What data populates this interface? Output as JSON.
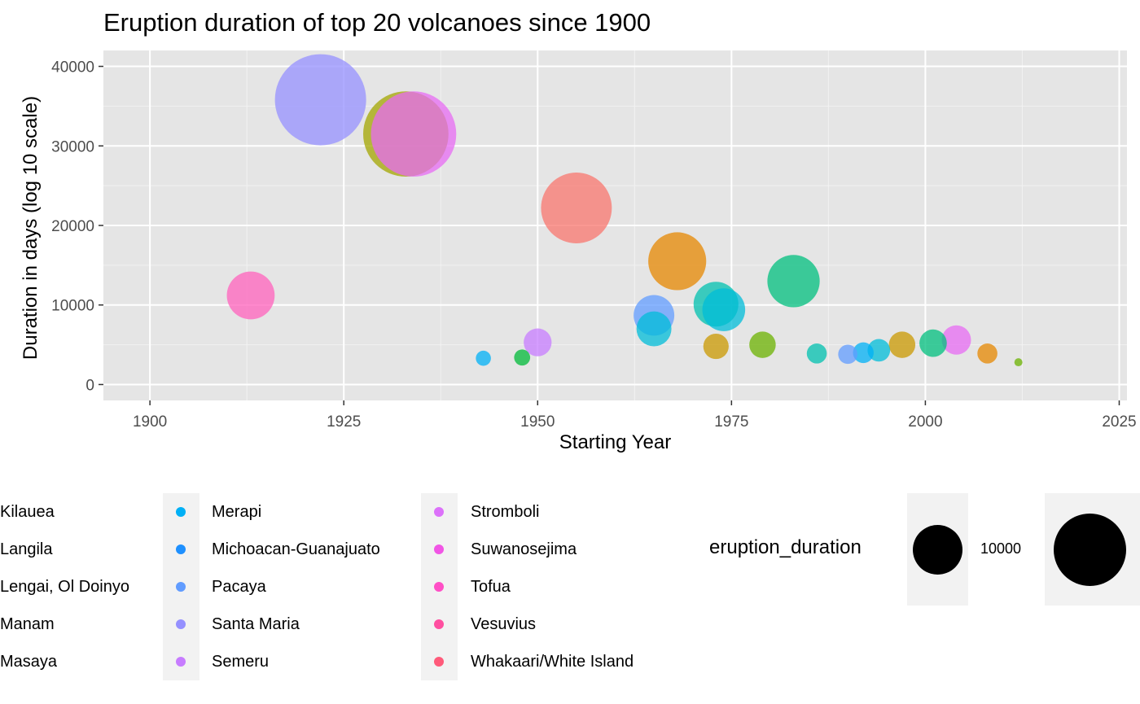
{
  "chart_data": {
    "type": "scatter",
    "title": "Eruption duration of top 20 volcanoes since 1900",
    "xlabel": "Starting Year",
    "ylabel": "Duration in days (log 10 scale)",
    "xlim": [
      1894,
      2026
    ],
    "ylim": [
      -2000,
      42000
    ],
    "x_ticks": [
      1900,
      1925,
      1950,
      1975,
      2000,
      2025
    ],
    "y_ticks": [
      0,
      10000,
      20000,
      30000,
      40000
    ],
    "grid": true,
    "legend_position": "bottom",
    "size_legend": {
      "title": "eruption_duration",
      "labels": [
        "10000"
      ]
    },
    "series": [
      {
        "name": "Kilauea",
        "color": "#F8766D",
        "points": [
          {
            "x": 1955,
            "y": 22200
          }
        ]
      },
      {
        "name": "Langila",
        "color": "#E58700",
        "points": [
          {
            "x": 1968,
            "y": 15500
          },
          {
            "x": 2008,
            "y": 3900
          }
        ]
      },
      {
        "name": "Lengai, Ol Doinyo",
        "color": "#C99800",
        "points": [
          {
            "x": 1973,
            "y": 4800
          },
          {
            "x": 1997,
            "y": 5000
          }
        ]
      },
      {
        "name": "Manam",
        "color": "#A3A500",
        "points": [
          {
            "x": 1933,
            "y": 31500
          }
        ]
      },
      {
        "name": "Masaya",
        "color": "#6BB100",
        "points": [
          {
            "x": 1979,
            "y": 5000
          },
          {
            "x": 2012,
            "y": 2800
          }
        ]
      },
      {
        "name": "Merapi",
        "color": "#00BA38",
        "points": [
          {
            "x": 1948,
            "y": 3400
          }
        ]
      },
      {
        "name": "Michoacan-Guanajuato",
        "color": "#00BF7D",
        "points": [
          {
            "x": 1983,
            "y": 13000
          },
          {
            "x": 2001,
            "y": 5200
          }
        ]
      },
      {
        "name": "Pacaya",
        "color": "#00C0AF",
        "points": [
          {
            "x": 1973,
            "y": 10100
          },
          {
            "x": 1986,
            "y": 3900
          }
        ]
      },
      {
        "name": "Santa Maria",
        "color": "#00BCD8",
        "points": [
          {
            "x": 1974,
            "y": 9400
          },
          {
            "x": 1965,
            "y": 7000
          },
          {
            "x": 1994,
            "y": 4300
          }
        ]
      },
      {
        "name": "Semeru",
        "color": "#00B0F6",
        "points": [
          {
            "x": 1943,
            "y": 3300
          },
          {
            "x": 1992,
            "y": 4000
          }
        ]
      },
      {
        "name": "Stromboli",
        "color": "#619CFF",
        "points": [
          {
            "x": 1965,
            "y": 8700
          },
          {
            "x": 1990,
            "y": 3800
          }
        ]
      },
      {
        "name": "Suwanosejima",
        "color": "#9590FF",
        "points": [
          {
            "x": 1922,
            "y": 35800
          }
        ]
      },
      {
        "name": "Tofua",
        "color": "#C77CFF",
        "points": [
          {
            "x": 1950,
            "y": 5300
          }
        ]
      },
      {
        "name": "Vesuvius",
        "color": "#E76BF3",
        "points": [
          {
            "x": 1934,
            "y": 31500
          },
          {
            "x": 2004,
            "y": 5600
          }
        ]
      },
      {
        "name": "Whakaari/White Island",
        "color": "#FF62BC",
        "points": [
          {
            "x": 1913,
            "y": 11200
          }
        ]
      }
    ]
  },
  "legend": {
    "col1": [
      {
        "label": "Kilauea",
        "color": "#F8766D"
      },
      {
        "label": "Langila",
        "color": "#E58700"
      },
      {
        "label": "Lengai, Ol Doinyo",
        "color": "#C99800"
      },
      {
        "label": "Manam",
        "color": "#A3A500"
      },
      {
        "label": "Masaya",
        "color": "#6BB100"
      }
    ],
    "col2": [
      {
        "label": "Merapi",
        "color": "#00B0F6"
      },
      {
        "label": "Michoacan-Guanajuato",
        "color": "#1E90FF"
      },
      {
        "label": "Pacaya",
        "color": "#619CFF"
      },
      {
        "label": "Santa Maria",
        "color": "#9590FF"
      },
      {
        "label": "Semeru",
        "color": "#C77CFF"
      }
    ],
    "col3": [
      {
        "label": "Stromboli",
        "color": "#DC71FA"
      },
      {
        "label": "Suwanosejima",
        "color": "#F155E5"
      },
      {
        "label": "Tofua",
        "color": "#FF4FC6"
      },
      {
        "label": "Vesuvius",
        "color": "#FF4FA0"
      },
      {
        "label": "Whakaari/White Island",
        "color": "#FF5A7A"
      }
    ]
  }
}
